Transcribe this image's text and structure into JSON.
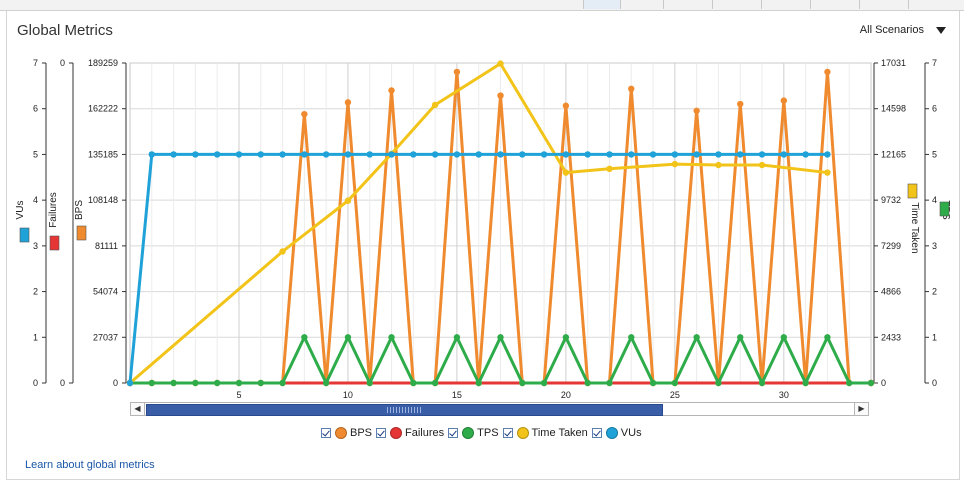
{
  "header": {
    "title": "Global Metrics",
    "scenario_label": "All Scenarios"
  },
  "learn_link": "Learn about global metrics",
  "colors": {
    "BPS": "#f08a2f",
    "Failures": "#e53535",
    "TPS": "#2eac4a",
    "Time Taken": "#f2c318",
    "VUs": "#1fa2d8"
  },
  "chart_data": {
    "type": "line",
    "title": "Global Metrics",
    "x": [
      0,
      1,
      2,
      3,
      4,
      5,
      6,
      7,
      8,
      9,
      10,
      11,
      12,
      13,
      14,
      15,
      16,
      17,
      18,
      19,
      20,
      21,
      22,
      23,
      24,
      25,
      26,
      27,
      28,
      29,
      30,
      31,
      32,
      33,
      34
    ],
    "xlim": [
      0,
      34
    ],
    "x_ticks": [
      "5",
      "10",
      "15",
      "20",
      "25",
      "30"
    ],
    "x_tick_values": [
      5,
      10,
      15,
      20,
      25,
      30
    ],
    "axes": [
      {
        "label": "VUs",
        "color": "#1fa2d8",
        "ticks": [
          "0",
          "1",
          "2",
          "3",
          "4",
          "5",
          "6",
          "7"
        ],
        "ylim": [
          0,
          7
        ]
      },
      {
        "label": "Failures",
        "color": "#e53535",
        "ticks": [
          "0",
          "0"
        ],
        "ylim": [
          0,
          1
        ]
      },
      {
        "label": "BPS",
        "color": "#f08a2f",
        "ticks": [
          "0",
          "27037",
          "54074",
          "81111",
          "108148",
          "135185",
          "162222",
          "189259"
        ],
        "ylim": [
          0,
          189259
        ]
      },
      {
        "label": "Time Taken",
        "color": "#f2c318",
        "ticks": [
          "0",
          "2433",
          "4866",
          "7299",
          "9732",
          "12165",
          "14598",
          "17031"
        ],
        "ylim": [
          0,
          17031
        ]
      },
      {
        "label": "TPS",
        "color": "#2eac4a",
        "ticks": [
          "0",
          "1",
          "2",
          "3",
          "4",
          "5",
          "6",
          "7"
        ],
        "ylim": [
          0,
          7
        ]
      }
    ],
    "series": [
      {
        "name": "BPS",
        "axis": "BPS",
        "color": "#f08a2f",
        "x": [
          0,
          1,
          2,
          3,
          4,
          5,
          6,
          7,
          8,
          9,
          10,
          11,
          12,
          13,
          14,
          15,
          16,
          17,
          18,
          19,
          20,
          21,
          22,
          23,
          24,
          25,
          26,
          27,
          28,
          29,
          30,
          31,
          32,
          33,
          34
        ],
        "values": [
          0,
          0,
          0,
          0,
          0,
          0,
          0,
          0,
          159000,
          0,
          166000,
          0,
          173000,
          0,
          0,
          184000,
          0,
          170000,
          0,
          0,
          164000,
          0,
          0,
          174000,
          0,
          0,
          161000,
          0,
          165000,
          0,
          167000,
          0,
          184000,
          0,
          0
        ]
      },
      {
        "name": "Failures",
        "axis": "Failures",
        "color": "#e53535",
        "x": [
          0,
          34
        ],
        "values": [
          0,
          0
        ]
      },
      {
        "name": "TPS",
        "axis": "TPS",
        "color": "#2eac4a",
        "x": [
          0,
          1,
          2,
          3,
          4,
          5,
          6,
          7,
          8,
          9,
          10,
          11,
          12,
          13,
          14,
          15,
          16,
          17,
          18,
          19,
          20,
          21,
          22,
          23,
          24,
          25,
          26,
          27,
          28,
          29,
          30,
          31,
          32,
          33,
          34
        ],
        "values": [
          0,
          0,
          0,
          0,
          0,
          0,
          0,
          0,
          1,
          0,
          1,
          0,
          1,
          0,
          0,
          1,
          0,
          1,
          0,
          0,
          1,
          0,
          0,
          1,
          0,
          0,
          1,
          0,
          1,
          0,
          1,
          0,
          1,
          0,
          0
        ]
      },
      {
        "name": "Time Taken",
        "axis": "Time Taken",
        "color": "#f2c318",
        "x": [
          0,
          7,
          10,
          12,
          14,
          17,
          20,
          22,
          25,
          27,
          29,
          32
        ],
        "values": [
          0,
          7000,
          9700,
          12200,
          14800,
          17000,
          11200,
          11400,
          11650,
          11600,
          11600,
          11200
        ]
      },
      {
        "name": "VUs",
        "axis": "VUs",
        "color": "#1fa2d8",
        "x": [
          0,
          1,
          2,
          3,
          4,
          5,
          6,
          7,
          8,
          9,
          10,
          11,
          12,
          13,
          14,
          15,
          16,
          17,
          18,
          19,
          20,
          21,
          22,
          23,
          24,
          25,
          26,
          27,
          28,
          29,
          30,
          31,
          32
        ],
        "values": [
          0,
          5,
          5,
          5,
          5,
          5,
          5,
          5,
          5,
          5,
          5,
          5,
          5,
          5,
          5,
          5,
          5,
          5,
          5,
          5,
          5,
          5,
          5,
          5,
          5,
          5,
          5,
          5,
          5,
          5,
          5,
          5,
          5
        ]
      }
    ],
    "grid": true,
    "legend_position": "bottom"
  },
  "legend": [
    "BPS",
    "Failures",
    "TPS",
    "Time Taken",
    "VUs"
  ]
}
